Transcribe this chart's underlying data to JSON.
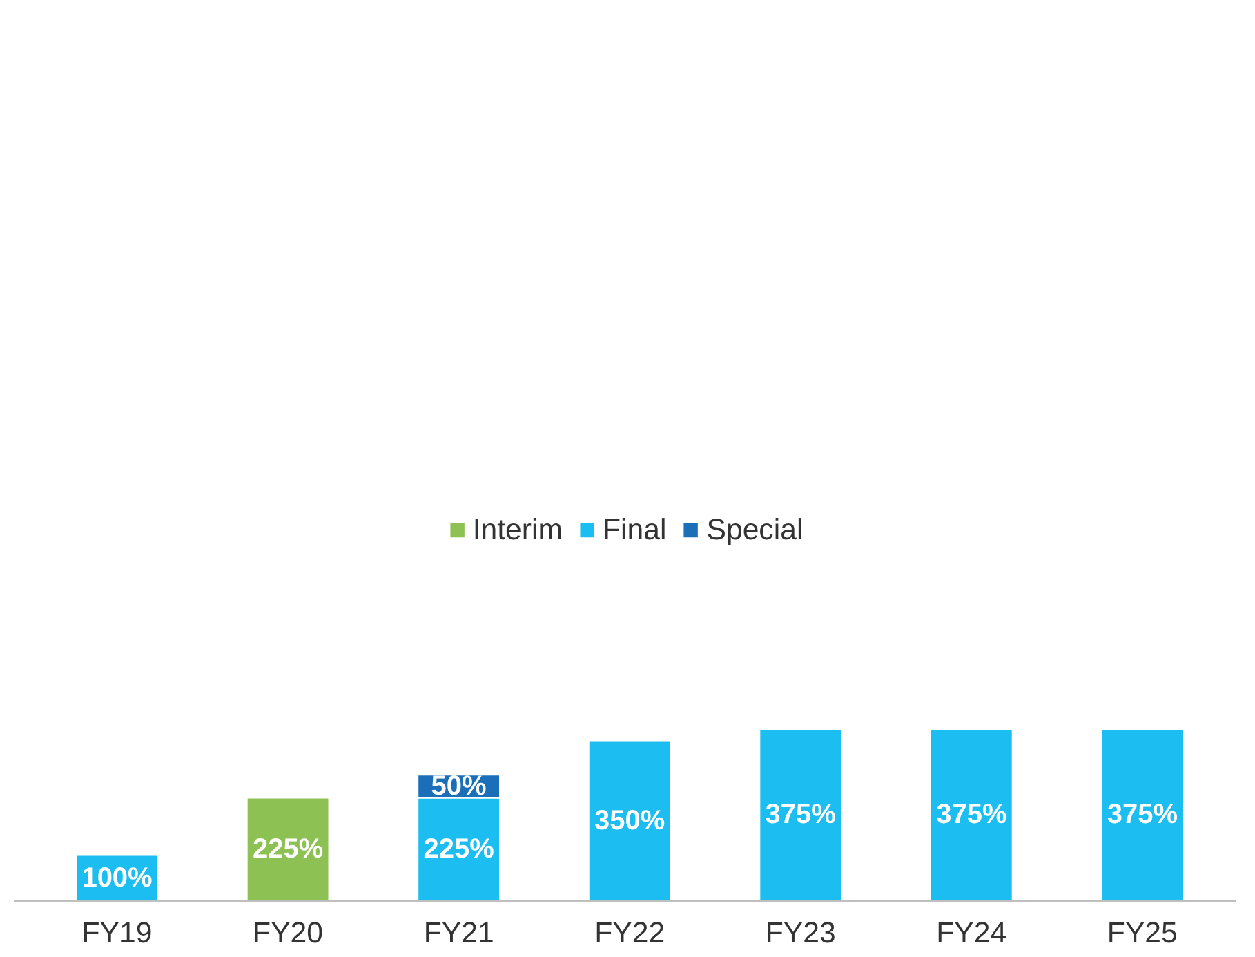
{
  "chart_data": {
    "type": "bar",
    "stacked": true,
    "legend": "top",
    "grid": false,
    "categories": [
      "FY19",
      "FY20",
      "FY21",
      "FY22",
      "FY23",
      "FY24",
      "FY25"
    ],
    "series": [
      {
        "name": "Interim",
        "color": "#8dc153",
        "values": [
          null,
          225,
          null,
          null,
          null,
          null,
          null
        ],
        "value_labels": [
          null,
          "225%",
          null,
          null,
          null,
          null,
          null
        ]
      },
      {
        "name": "Final",
        "color": "#1cbdf0",
        "values": [
          100,
          null,
          225,
          350,
          375,
          375,
          375
        ],
        "value_labels": [
          "100%",
          null,
          "225%",
          "350%",
          "375%",
          "375%",
          "375%"
        ]
      },
      {
        "name": "Special",
        "color": "#1a6fb8",
        "values": [
          null,
          null,
          50,
          null,
          null,
          null,
          null
        ],
        "value_labels": [
          null,
          null,
          "50%",
          null,
          null,
          null,
          null
        ]
      }
    ]
  }
}
